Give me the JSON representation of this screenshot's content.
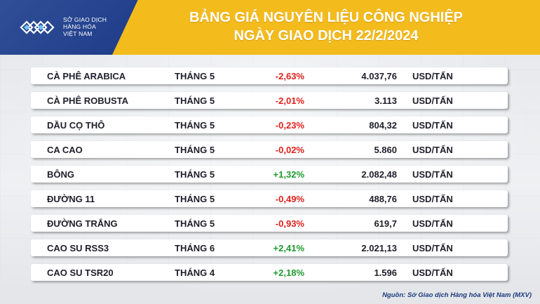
{
  "header": {
    "logo_lines": [
      "SỞ GIAO DỊCH",
      "HÀNG HÓA",
      "VIỆT NAM"
    ],
    "title_line1": "BẢNG GIÁ NGUYÊN LIỆU CÔNG NGHIỆP",
    "title_line2": "NGÀY GIAO DỊCH 22/2/2024",
    "colors": {
      "brand_blue": "#1f3f8f",
      "accent_yellow": "#f4bb1d",
      "negative": "#e0201b",
      "positive": "#1f9a2e"
    }
  },
  "rows": [
    {
      "name": "CÀ PHÊ ARABICA",
      "month": "THÁNG 5",
      "change": "-2,63%",
      "price": "4.037,76",
      "unit": "USD/TẤN"
    },
    {
      "name": "CÀ PHÊ ROBUSTA",
      "month": "THÁNG 5",
      "change": "-2,01%",
      "price": "3.113",
      "unit": "USD/TẤN"
    },
    {
      "name": "DẦU CỌ THÔ",
      "month": "THÁNG 5",
      "change": "-0,23%",
      "price": "804,32",
      "unit": "USD/TẤN"
    },
    {
      "name": "CA CAO",
      "month": "THÁNG 5",
      "change": "-0,02%",
      "price": "5.860",
      "unit": "USD/TẤN"
    },
    {
      "name": "BÔNG",
      "month": "THÁNG 5",
      "change": "+1,32%",
      "price": "2.082,48",
      "unit": "USD/TẤN"
    },
    {
      "name": "ĐƯỜNG 11",
      "month": "THÁNG 5",
      "change": "-0,49%",
      "price": "488,76",
      "unit": "USD/TẤN"
    },
    {
      "name": "ĐƯỜNG TRẮNG",
      "month": "THÁNG 5",
      "change": "-0,93%",
      "price": "619,7",
      "unit": "USD/TẤN"
    },
    {
      "name": "CAO SU RSS3",
      "month": "THÁNG 6",
      "change": "+2,41%",
      "price": "2.021,13",
      "unit": "USD/TẤN"
    },
    {
      "name": "CAO SU TSR20",
      "month": "THÁNG 4",
      "change": "+2,18%",
      "price": "1.596",
      "unit": "USD/TẤN"
    }
  ],
  "footer": {
    "source": "Nguồn: Sở Giao dịch Hàng hóa Việt Nam (MXV)"
  },
  "icons": {
    "logo": "mxv-logo-icon"
  }
}
